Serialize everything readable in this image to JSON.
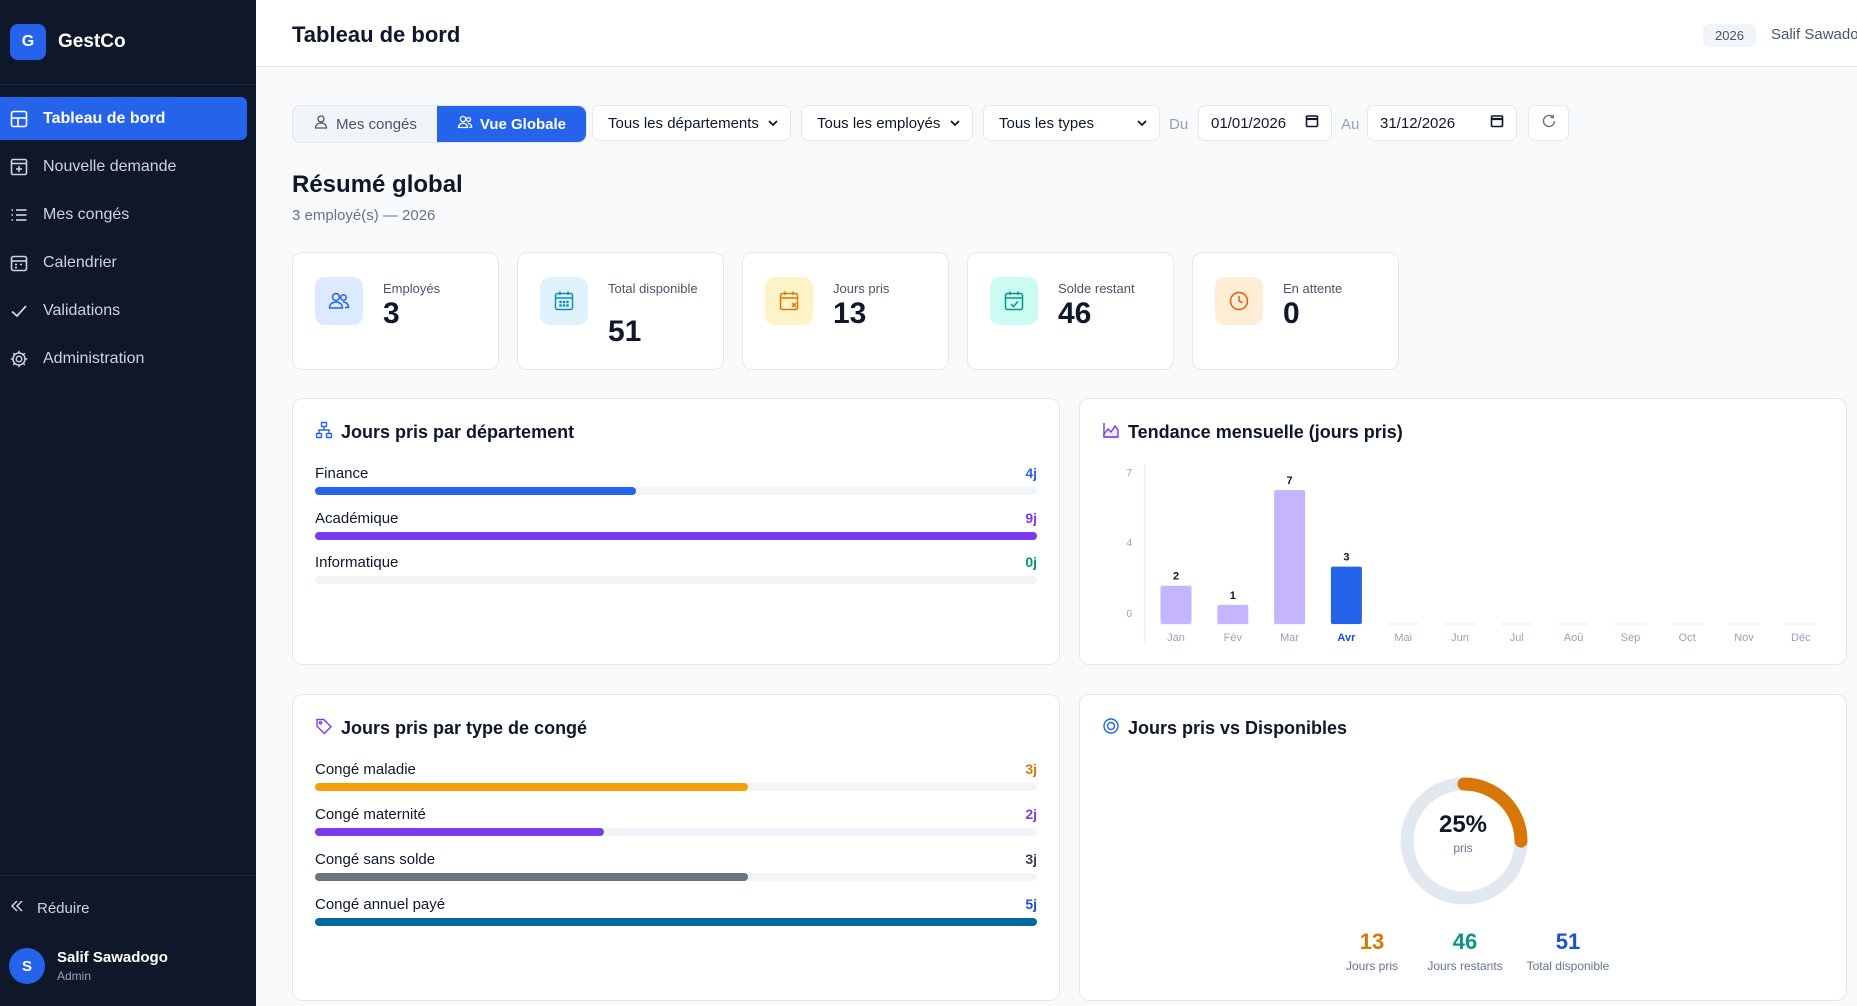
{
  "sidebar": {
    "brand_initial": "G",
    "brand_name": "GestCo",
    "items": [
      {
        "label": "Tableau de bord",
        "icon": "dashboard-icon"
      },
      {
        "label": "Nouvelle demande",
        "icon": "plus-square-icon"
      },
      {
        "label": "Mes congés",
        "icon": "list-icon"
      },
      {
        "label": "Calendrier",
        "icon": "calendar-icon"
      },
      {
        "label": "Validations",
        "icon": "check-icon"
      },
      {
        "label": "Administration",
        "icon": "gear-icon"
      }
    ],
    "reduce_label": "Réduire",
    "user": {
      "initial": "S",
      "name": "Salif Sawadogo",
      "role": "Admin"
    }
  },
  "header": {
    "title": "Tableau de bord",
    "year": "2026",
    "user_name": "Salif Sawadogo"
  },
  "filters": {
    "tabs": [
      "Mes congés",
      "Vue Globale"
    ],
    "department": "Tous les départements",
    "employee": "Tous les employés",
    "type": "Tous les types",
    "from_label": "Du",
    "from_date": "01/01/2026",
    "to_label": "Au",
    "to_date": "31/12/2026"
  },
  "summary": {
    "title": "Résumé global",
    "subtitle": "3 employé(s) — 2026",
    "stats": [
      {
        "label": "Employés",
        "value": "3",
        "icon": "users-icon",
        "color": "#2563eb",
        "bg": "#dbeafe"
      },
      {
        "label": "Total disponible",
        "value": "51",
        "icon": "calendar-grid-icon",
        "color": "#0891b2",
        "bg": "#e0f2fe"
      },
      {
        "label": "Jours pris",
        "value": "13",
        "icon": "calendar-x-icon",
        "color": "#d97706",
        "bg": "#fef3c7"
      },
      {
        "label": "Solde restant",
        "value": "46",
        "icon": "calendar-check-icon",
        "color": "#0d9488",
        "bg": "#ccfbf1"
      },
      {
        "label": "En attente",
        "value": "0",
        "icon": "clock-icon",
        "color": "#ea580c",
        "bg": "#ffedd5"
      }
    ]
  },
  "departments": {
    "title": "Jours pris par département",
    "max": 9,
    "rows": [
      {
        "label": "Finance",
        "value": 4,
        "display": "4j",
        "color": "#2563eb"
      },
      {
        "label": "Académique",
        "value": 9,
        "display": "9j",
        "color": "#7c3aed"
      },
      {
        "label": "Informatique",
        "value": 0,
        "display": "0j",
        "color": "#059669"
      }
    ]
  },
  "trend": {
    "title": "Tendance mensuelle (jours pris)"
  },
  "chart_data": {
    "type": "bar",
    "categories": [
      "Jan",
      "Fév",
      "Mar",
      "Avr",
      "Mai",
      "Jun",
      "Jul",
      "Aoû",
      "Sep",
      "Oct",
      "Nov",
      "Déc"
    ],
    "values": [
      2,
      1,
      7,
      3,
      0,
      0,
      0,
      0,
      0,
      0,
      0,
      0
    ],
    "title": "Tendance mensuelle (jours pris)",
    "yticks": [
      "0",
      "4",
      "7"
    ],
    "ylim": [
      0,
      7
    ],
    "highlight": "Avr",
    "colors": {
      "default": "#c4b5fd",
      "highlight": "#2563eb"
    }
  },
  "types": {
    "title": "Jours pris par type de congé",
    "max": 5,
    "rows": [
      {
        "label": "Congé maladie",
        "value": 3,
        "display": "3j",
        "color": "#f59e0b",
        "vcolor": "#d97706"
      },
      {
        "label": "Congé maternité",
        "value": 2,
        "display": "2j",
        "color": "#7c3aed",
        "vcolor": "#7c3aed"
      },
      {
        "label": "Congé sans solde",
        "value": 3,
        "display": "3j",
        "color": "#6b7280",
        "vcolor": "#374151"
      },
      {
        "label": "Congé annuel payé",
        "value": 5,
        "display": "5j",
        "color": "#0369a1",
        "vcolor": "#1d4ed8"
      }
    ]
  },
  "ratio": {
    "title": "Jours pris vs Disponibles",
    "percent": 25,
    "percent_label": "25%",
    "caption": "pris",
    "stats": [
      {
        "value": "13",
        "label": "Jours pris",
        "color": "#d97706"
      },
      {
        "value": "46",
        "label": "Jours restants",
        "color": "#0d9488"
      },
      {
        "value": "51",
        "label": "Total disponible",
        "color": "#1d4ed8"
      }
    ]
  }
}
